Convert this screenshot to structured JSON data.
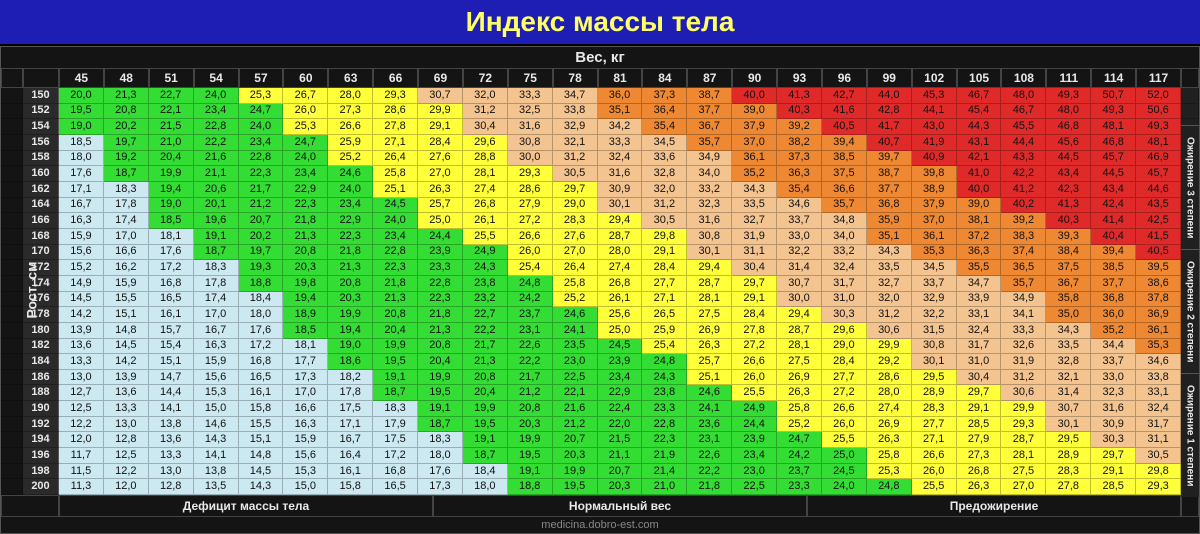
{
  "title": "Индекс массы тела",
  "x_axis_label": "Вес, кг",
  "y_axis_label": "Рост, см",
  "footer": "medicina.dobro-est.com",
  "weights": [
    45,
    48,
    51,
    54,
    57,
    60,
    63,
    66,
    69,
    72,
    75,
    78,
    81,
    84,
    87,
    90,
    93,
    96,
    99,
    102,
    105,
    108,
    111,
    114,
    117
  ],
  "heights": [
    150,
    152,
    154,
    156,
    158,
    160,
    162,
    164,
    166,
    168,
    170,
    172,
    174,
    176,
    178,
    180,
    182,
    184,
    186,
    188,
    190,
    192,
    194,
    196,
    198,
    200
  ],
  "legend_bottom": [
    "Дефицит массы тела",
    "Нормальный вес",
    "Предожирение"
  ],
  "legend_right": [
    "Ожирение 3 степени",
    "Ожирение 2 степени",
    "Ожирение 1 степени"
  ],
  "colors": {
    "underweight": "#cce9f2",
    "normal": "#33dd33",
    "pre": "#ffff3a",
    "ob1": "#f4c490",
    "ob2": "#ee8833",
    "ob3": "#e02a2a"
  },
  "thresholds": {
    "under": 18.5,
    "normal": 25,
    "pre": 30,
    "ob1": 35,
    "ob2": 40
  },
  "grid_cols_css": "22px 36px repeat(25, 1fr) 18px",
  "header_cols_css": "22px 36px repeat(25, 1fr) 18px"
}
